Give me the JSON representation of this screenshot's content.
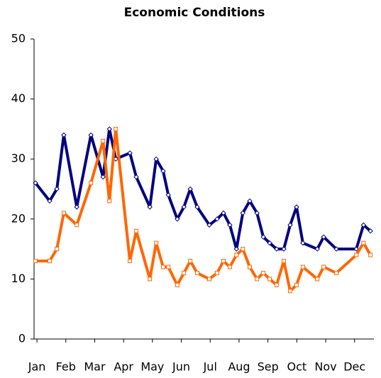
{
  "chart_data": {
    "type": "line",
    "title": "Economic Conditions",
    "x": [
      0.95,
      1.44,
      1.69,
      1.93,
      2.38,
      2.87,
      3.29,
      3.51,
      3.73,
      4.22,
      4.44,
      4.91,
      5.13,
      5.37,
      5.55,
      5.86,
      6.09,
      6.31,
      6.55,
      6.97,
      7.24,
      7.46,
      7.68,
      7.91,
      8.13,
      8.37,
      8.62,
      8.84,
      9.06,
      9.3,
      9.55,
      9.77,
      9.99,
      10.21,
      10.71,
      10.93,
      11.37,
      12.06,
      12.31,
      12.55
    ],
    "series": [
      {
        "color": "#000080",
        "marker": "diamond",
        "values": [
          26,
          23,
          25,
          34,
          22,
          34,
          27,
          35,
          30,
          31,
          27,
          22,
          30,
          28,
          24,
          20,
          22,
          25,
          22,
          19,
          20,
          21,
          19,
          15,
          21,
          23,
          21,
          17,
          16,
          15,
          15,
          19,
          22,
          16,
          15,
          17,
          15,
          15,
          19,
          18
        ]
      },
      {
        "color": "#ff6600",
        "marker": "square",
        "values": [
          13,
          13,
          15,
          21,
          19,
          26,
          33,
          23,
          35,
          13,
          18,
          10,
          16,
          12,
          12,
          9,
          11,
          13,
          11,
          10,
          11,
          13,
          12,
          14,
          15,
          12,
          10,
          11,
          10,
          9,
          13,
          8,
          9,
          12,
          10,
          12,
          11,
          14,
          16,
          14
        ]
      }
    ],
    "xlim": [
      0.9,
      12.67
    ],
    "xticks": [
      {
        "value": 1,
        "label": "Jan"
      },
      {
        "value": 2,
        "label": "Feb"
      },
      {
        "value": 3,
        "label": "Mar"
      },
      {
        "value": 4,
        "label": "Apr"
      },
      {
        "value": 5,
        "label": "May"
      },
      {
        "value": 6,
        "label": "Jun"
      },
      {
        "value": 7,
        "label": "Jul"
      },
      {
        "value": 8,
        "label": "Aug"
      },
      {
        "value": 9,
        "label": "Sep"
      },
      {
        "value": 10,
        "label": "Oct"
      },
      {
        "value": 11,
        "label": "Nov"
      },
      {
        "value": 12,
        "label": "Dec"
      }
    ],
    "ylim": [
      0,
      50
    ],
    "yticks": [
      0,
      10,
      20,
      30,
      40,
      50
    ],
    "grid": false
  }
}
